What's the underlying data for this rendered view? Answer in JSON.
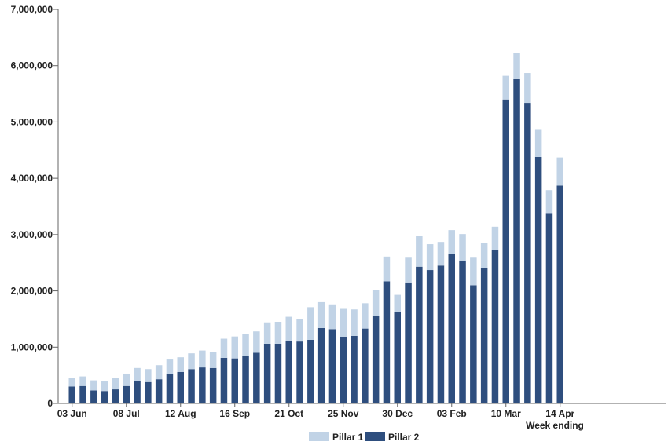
{
  "chart_data": {
    "type": "bar",
    "stacked": true,
    "title": "",
    "xlabel": "Week ending",
    "ylabel": "",
    "ylim": [
      0,
      7000000
    ],
    "y_ticks": [
      0,
      1000000,
      2000000,
      3000000,
      4000000,
      5000000,
      6000000,
      7000000
    ],
    "y_tick_labels": [
      "0",
      "1,000,000",
      "2,000,000",
      "3,000,000",
      "4,000,000",
      "5,000,000",
      "6,000,000",
      "7,000,000"
    ],
    "x_tick_labels": [
      {
        "index": 0,
        "label": "03 Jun"
      },
      {
        "index": 5,
        "label": "08 Jul"
      },
      {
        "index": 10,
        "label": "12 Aug"
      },
      {
        "index": 15,
        "label": "16 Sep"
      },
      {
        "index": 20,
        "label": "21 Oct"
      },
      {
        "index": 25,
        "label": "25 Nov"
      },
      {
        "index": 30,
        "label": "30 Dec"
      },
      {
        "index": 35,
        "label": "03 Feb"
      },
      {
        "index": 40,
        "label": "10 Mar"
      },
      {
        "index": 45,
        "label": "14 Apr"
      }
    ],
    "grid": false,
    "legend_position": "bottom-center",
    "series": [
      {
        "name": "Pillar 2",
        "color": "#2e4e7e",
        "values": [
          300000,
          310000,
          230000,
          220000,
          250000,
          310000,
          400000,
          380000,
          430000,
          520000,
          560000,
          610000,
          640000,
          630000,
          810000,
          800000,
          840000,
          900000,
          1060000,
          1060000,
          1110000,
          1100000,
          1130000,
          1340000,
          1320000,
          1180000,
          1200000,
          1330000,
          1550000,
          2170000,
          1630000,
          2150000,
          2430000,
          2370000,
          2450000,
          2650000,
          2540000,
          2100000,
          2410000,
          2720000,
          5400000,
          5760000,
          5340000,
          4380000,
          3370000,
          3870000
        ]
      },
      {
        "name": "Pillar 1",
        "color": "#c1d3e6",
        "values": [
          150000,
          170000,
          180000,
          170000,
          200000,
          220000,
          230000,
          230000,
          250000,
          260000,
          260000,
          280000,
          300000,
          290000,
          340000,
          390000,
          400000,
          380000,
          380000,
          390000,
          430000,
          400000,
          580000,
          460000,
          440000,
          500000,
          470000,
          450000,
          470000,
          440000,
          300000,
          440000,
          540000,
          460000,
          420000,
          430000,
          470000,
          490000,
          440000,
          420000,
          420000,
          470000,
          530000,
          480000,
          420000,
          500000
        ]
      }
    ],
    "axis_color": "#666666"
  }
}
